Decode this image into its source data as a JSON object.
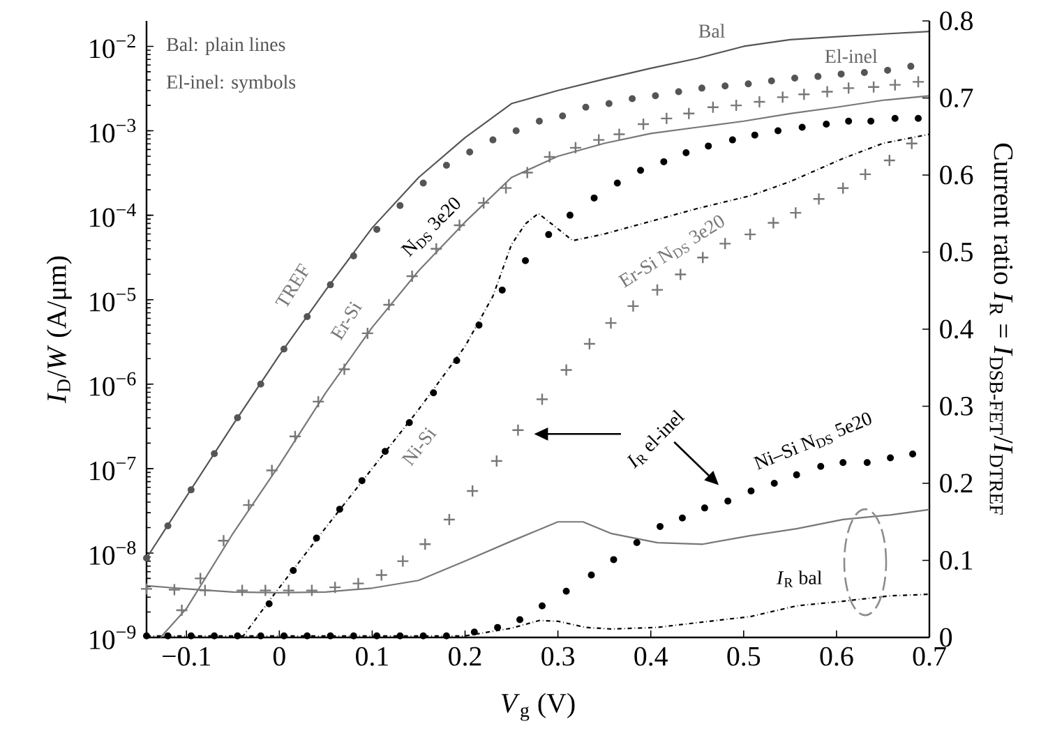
{
  "chart_data": {
    "type": "line",
    "xlabel": "*V*$_{g}$ (V)",
    "ylabel": "*I*$_{D}$/*W* (A/μm)",
    "y2label": "Current ratio *I*$_{R}$ = *I*$_{DSB-FET}$/*I*$_{DTREF}$",
    "log": "y",
    "xlim": [
      -0.143,
      0.7
    ],
    "xticks": [
      {
        "value": -0.1,
        "label": "−0.1"
      },
      0,
      0.1,
      0.2,
      0.3,
      0.4,
      0.5,
      0.6,
      0.7
    ],
    "ylim": [
      1e-09,
      0.02
    ],
    "yticks": [
      {
        "value": 1e-09,
        "label": "10$^{−9}$"
      },
      {
        "value": 1e-08,
        "label": "10$^{−8}$"
      },
      {
        "value": 1e-07,
        "label": "10$^{−7}$"
      },
      {
        "value": 1e-06,
        "label": "10$^{−6}$"
      },
      {
        "value": 1e-05,
        "label": "10$^{−5}$"
      },
      {
        "value": 0.0001,
        "label": "10$^{−4}$"
      },
      {
        "value": 0.001,
        "label": "10$^{−3}$"
      },
      {
        "value": 0.01,
        "label": "10$^{−2}$"
      }
    ],
    "y2lim": [
      0,
      0.8
    ],
    "y2ticks": [
      0,
      0.1,
      0.2,
      0.3,
      0.4,
      0.5,
      0.6,
      0.7,
      0.8
    ],
    "annotations": [
      "Bal: plain lines",
      "El-inel: symbols",
      "Bal",
      "El-inel",
      "TREF",
      "Er-Si",
      "N$_{DS}$ 3e20",
      "Ni-Si",
      "Er-Si N$_{DS}$ 3e20",
      "*I*$_{R}$ el-inel",
      "Ni–Si N$_{DS}$ 5e20",
      "*I*$_{R}$ bal"
    ],
    "series": [
      {
        "color": "#555555",
        "line_style": "solid",
        "x": [
          -0.143,
          -0.05,
          0.0,
          0.05,
          0.1,
          0.15,
          0.2,
          0.25,
          0.3,
          0.35,
          0.4,
          0.45,
          0.5,
          0.55,
          0.6,
          0.65,
          0.7
        ],
        "values": [
          8.7e-09,
          3.3e-07,
          2.2e-06,
          1.3e-05,
          7.1e-05,
          0.00028,
          0.00083,
          0.0021,
          0.003,
          0.0041,
          0.0055,
          0.0072,
          0.01,
          0.012,
          0.013,
          0.014,
          0.015
        ]
      },
      {
        "type": "scatter",
        "color": "#555555",
        "marker": "circle",
        "x": [
          -0.143,
          -0.12,
          -0.095,
          -0.07,
          -0.045,
          -0.02,
          0.005,
          0.03,
          0.055,
          0.08,
          0.105,
          0.13,
          0.155,
          0.18,
          0.205,
          0.23,
          0.255,
          0.28,
          0.305,
          0.33,
          0.355,
          0.38,
          0.405,
          0.43,
          0.455,
          0.48,
          0.505,
          0.53,
          0.555,
          0.58,
          0.605,
          0.63,
          0.655,
          0.68
        ],
        "values": [
          8.7e-09,
          2.1e-08,
          5.6e-08,
          1.5e-07,
          4e-07,
          1e-06,
          2.6e-06,
          6.3e-06,
          1.5e-05,
          3.3e-05,
          6.8e-05,
          0.00013,
          0.00024,
          0.00039,
          0.00056,
          0.00078,
          0.001,
          0.0013,
          0.0015,
          0.0019,
          0.0021,
          0.0024,
          0.0026,
          0.0029,
          0.0032,
          0.0034,
          0.0036,
          0.0039,
          0.0042,
          0.0044,
          0.0047,
          0.0049,
          0.0052,
          0.0058
        ]
      },
      {
        "color": "#777777",
        "line_style": "solid",
        "x": [
          -0.128,
          -0.1,
          -0.05,
          0.0,
          0.05,
          0.1,
          0.15,
          0.2,
          0.25,
          0.3,
          0.35,
          0.4,
          0.45,
          0.5,
          0.55,
          0.6,
          0.65,
          0.7
        ],
        "values": [
          1e-09,
          2.2e-09,
          1.7e-08,
          1.1e-07,
          7.9e-07,
          4.7e-06,
          2.2e-05,
          8.3e-05,
          0.00028,
          0.0005,
          0.00071,
          0.00093,
          0.0011,
          0.0013,
          0.0016,
          0.0019,
          0.0023,
          0.0026
        ]
      },
      {
        "type": "scatter",
        "color": "#777777",
        "marker": "cross",
        "x": [
          -0.105,
          -0.085,
          -0.06,
          -0.033,
          -0.008,
          0.017,
          0.042,
          0.07,
          0.095,
          0.118,
          0.143,
          0.169,
          0.194,
          0.22,
          0.244,
          0.267,
          0.291,
          0.319,
          0.344,
          0.366,
          0.392,
          0.417,
          0.441,
          0.467,
          0.492,
          0.517,
          0.542,
          0.565,
          0.59,
          0.613,
          0.64,
          0.663,
          0.688
        ],
        "values": [
          2.1e-09,
          5e-09,
          1.4e-08,
          3.7e-08,
          9.5e-08,
          2.4e-07,
          6.2e-07,
          1.5e-06,
          4e-06,
          8.7e-06,
          1.9e-05,
          4e-05,
          7.6e-05,
          0.00014,
          0.00021,
          0.00032,
          0.00049,
          0.00063,
          0.00078,
          0.00091,
          0.0012,
          0.0014,
          0.0016,
          0.0019,
          0.002,
          0.0022,
          0.0025,
          0.0027,
          0.0029,
          0.0032,
          0.0033,
          0.0035,
          0.0038
        ]
      },
      {
        "color": "#000000",
        "line_style": "dashdot",
        "x": [
          -0.04,
          -0.01,
          0.05,
          0.1,
          0.15,
          0.2,
          0.23,
          0.25,
          0.265,
          0.279,
          0.316,
          0.35,
          0.407,
          0.45,
          0.507,
          0.55,
          0.607,
          0.65,
          0.7
        ],
        "values": [
          1e-09,
          2.8e-09,
          2e-08,
          1e-07,
          5e-07,
          2.8e-06,
          1.1e-05,
          4.5e-05,
          7.9e-05,
          0.000105,
          5e-05,
          6e-05,
          8.9e-05,
          0.00012,
          0.00017,
          0.00025,
          0.00047,
          0.00071,
          0.00091
        ]
      },
      {
        "type": "scatter",
        "color": "#000000",
        "marker": "circle",
        "x": [
          -0.011,
          0.015,
          0.04,
          0.065,
          0.089,
          0.114,
          0.14,
          0.166,
          0.191,
          0.215,
          0.24,
          0.265,
          0.29,
          0.313,
          0.339,
          0.364,
          0.389,
          0.414,
          0.438,
          0.462,
          0.488,
          0.512,
          0.537,
          0.563,
          0.589,
          0.613,
          0.637,
          0.663,
          0.688
        ],
        "values": [
          2.5e-09,
          6.2e-09,
          1.5e-08,
          3.3e-08,
          7.2e-08,
          1.6e-07,
          3.5e-07,
          7.9e-07,
          1.9e-06,
          5e-06,
          1.3e-05,
          2.9e-05,
          5.9e-05,
          0.0001,
          0.00016,
          0.00024,
          0.00034,
          0.00043,
          0.00055,
          0.00066,
          0.00078,
          0.00089,
          0.001,
          0.0011,
          0.0012,
          0.0013,
          0.0013,
          0.0014,
          0.0014
        ]
      },
      {
        "axis": "y2",
        "color": "#777777",
        "line_style": "solid",
        "x": [
          -0.143,
          -0.1,
          -0.05,
          0.0,
          0.05,
          0.1,
          0.15,
          0.2,
          0.25,
          0.3,
          0.327,
          0.357,
          0.407,
          0.456,
          0.507,
          0.557,
          0.607,
          0.658,
          0.7
        ],
        "values": [
          0.067,
          0.063,
          0.059,
          0.058,
          0.059,
          0.064,
          0.074,
          0.099,
          0.125,
          0.15,
          0.15,
          0.135,
          0.123,
          0.121,
          0.132,
          0.141,
          0.153,
          0.159,
          0.166
        ]
      },
      {
        "type": "scatter",
        "axis": "y2",
        "color": "#777777",
        "marker": "cross",
        "x": [
          -0.143,
          -0.113,
          -0.08,
          -0.04,
          -0.015,
          0.01,
          0.035,
          0.06,
          0.085,
          0.11,
          0.133,
          0.157,
          0.183,
          0.208,
          0.234,
          0.257,
          0.283,
          0.309,
          0.334,
          0.357,
          0.381,
          0.407,
          0.432,
          0.456,
          0.48,
          0.507,
          0.532,
          0.556,
          0.581,
          0.607,
          0.631,
          0.657,
          0.681
        ],
        "values": [
          0.063,
          0.062,
          0.061,
          0.061,
          0.061,
          0.061,
          0.061,
          0.065,
          0.07,
          0.081,
          0.099,
          0.121,
          0.153,
          0.19,
          0.229,
          0.269,
          0.309,
          0.347,
          0.381,
          0.408,
          0.43,
          0.451,
          0.471,
          0.493,
          0.511,
          0.523,
          0.538,
          0.551,
          0.569,
          0.583,
          0.601,
          0.619,
          0.641
        ]
      },
      {
        "axis": "y2",
        "color": "#000000",
        "line_style": "dashdot",
        "x": [
          -0.143,
          0.2,
          0.25,
          0.28,
          0.3,
          0.33,
          0.357,
          0.407,
          0.456,
          0.507,
          0.557,
          0.607,
          0.658,
          0.7
        ],
        "values": [
          0.002,
          0.002,
          0.012,
          0.022,
          0.021,
          0.013,
          0.011,
          0.013,
          0.02,
          0.027,
          0.041,
          0.047,
          0.054,
          0.056
        ]
      },
      {
        "type": "scatter",
        "axis": "y2",
        "color": "#000000",
        "marker": "circle",
        "x": [
          -0.143,
          -0.12,
          -0.095,
          -0.07,
          -0.045,
          -0.02,
          0.005,
          0.03,
          0.055,
          0.08,
          0.105,
          0.13,
          0.155,
          0.18,
          0.21,
          0.235,
          0.259,
          0.283,
          0.309,
          0.336,
          0.36,
          0.385,
          0.41,
          0.434,
          0.458,
          0.483,
          0.508,
          0.533,
          0.557,
          0.583,
          0.607,
          0.633,
          0.658,
          0.682
        ],
        "values": [
          0.002,
          0.002,
          0.002,
          0.002,
          0.002,
          0.002,
          0.002,
          0.002,
          0.002,
          0.002,
          0.002,
          0.002,
          0.002,
          0.002,
          0.007,
          0.013,
          0.023,
          0.041,
          0.06,
          0.081,
          0.101,
          0.123,
          0.144,
          0.155,
          0.168,
          0.177,
          0.19,
          0.2,
          0.211,
          0.222,
          0.227,
          0.227,
          0.233,
          0.238
        ]
      }
    ]
  }
}
